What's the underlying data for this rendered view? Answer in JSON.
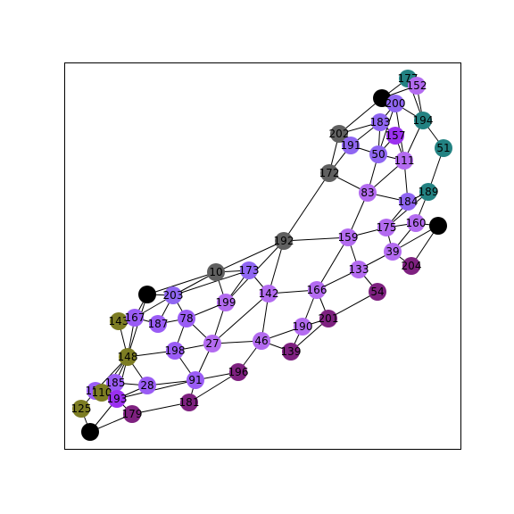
{
  "graph": {
    "colors": {
      "purple_light": "#b36bf0",
      "purple_mid": "#9a5cf5",
      "purple_blue": "#8f66f2",
      "violet": "#9b30f0",
      "magenta_dark": "#7e2180",
      "teal": "#238282",
      "olive": "#7d7d23",
      "gray": "#606060",
      "black": "#000000"
    },
    "nodes": [
      {
        "id": "177",
        "label": "177",
        "color": "teal"
      },
      {
        "id": "152",
        "label": "152",
        "color": "purple_light"
      },
      {
        "id": "b1",
        "label": "",
        "color": "black"
      },
      {
        "id": "200",
        "label": "200",
        "color": "purple_blue"
      },
      {
        "id": "194",
        "label": "194",
        "color": "teal"
      },
      {
        "id": "202",
        "label": "202",
        "color": "gray"
      },
      {
        "id": "183",
        "label": "183",
        "color": "purple_blue"
      },
      {
        "id": "157",
        "label": "157",
        "color": "violet"
      },
      {
        "id": "191",
        "label": "191",
        "color": "purple_blue"
      },
      {
        "id": "50",
        "label": "50",
        "color": "purple_blue"
      },
      {
        "id": "111",
        "label": "111",
        "color": "purple_light"
      },
      {
        "id": "51",
        "label": "51",
        "color": "teal"
      },
      {
        "id": "172",
        "label": "172",
        "color": "gray"
      },
      {
        "id": "83",
        "label": "83",
        "color": "purple_light"
      },
      {
        "id": "189",
        "label": "189",
        "color": "teal"
      },
      {
        "id": "184",
        "label": "184",
        "color": "purple_blue"
      },
      {
        "id": "160",
        "label": "160",
        "color": "purple_light"
      },
      {
        "id": "b2",
        "label": "",
        "color": "black"
      },
      {
        "id": "175",
        "label": "175",
        "color": "purple_light"
      },
      {
        "id": "159",
        "label": "159",
        "color": "purple_light"
      },
      {
        "id": "192",
        "label": "192",
        "color": "gray"
      },
      {
        "id": "39",
        "label": "39",
        "color": "purple_light"
      },
      {
        "id": "204",
        "label": "204",
        "color": "magenta_dark"
      },
      {
        "id": "133",
        "label": "133",
        "color": "purple_light"
      },
      {
        "id": "54",
        "label": "54",
        "color": "magenta_dark"
      },
      {
        "id": "10",
        "label": "10",
        "color": "gray"
      },
      {
        "id": "173",
        "label": "173",
        "color": "purple_blue"
      },
      {
        "id": "b3",
        "label": "",
        "color": "black"
      },
      {
        "id": "203",
        "label": "203",
        "color": "purple_blue"
      },
      {
        "id": "166",
        "label": "166",
        "color": "purple_light"
      },
      {
        "id": "142",
        "label": "142",
        "color": "purple_light"
      },
      {
        "id": "199",
        "label": "199",
        "color": "purple_light"
      },
      {
        "id": "201",
        "label": "201",
        "color": "magenta_dark"
      },
      {
        "id": "190",
        "label": "190",
        "color": "purple_light"
      },
      {
        "id": "143",
        "label": "143",
        "color": "olive"
      },
      {
        "id": "167",
        "label": "167",
        "color": "purple_mid"
      },
      {
        "id": "187",
        "label": "187",
        "color": "purple_mid"
      },
      {
        "id": "78",
        "label": "78",
        "color": "purple_mid"
      },
      {
        "id": "27",
        "label": "27",
        "color": "purple_light"
      },
      {
        "id": "46",
        "label": "46",
        "color": "purple_light"
      },
      {
        "id": "139",
        "label": "139",
        "color": "magenta_dark"
      },
      {
        "id": "198",
        "label": "198",
        "color": "purple_mid"
      },
      {
        "id": "148",
        "label": "148",
        "color": "olive"
      },
      {
        "id": "196",
        "label": "196",
        "color": "magenta_dark"
      },
      {
        "id": "91",
        "label": "91",
        "color": "purple_mid"
      },
      {
        "id": "28",
        "label": "28",
        "color": "purple_mid"
      },
      {
        "id": "185",
        "label": "185",
        "color": "purple_mid"
      },
      {
        "id": "155",
        "label": "155",
        "color": "purple_mid"
      },
      {
        "id": "110",
        "label": "110",
        "color": "olive"
      },
      {
        "id": "193",
        "label": "193",
        "color": "violet"
      },
      {
        "id": "181",
        "label": "181",
        "color": "magenta_dark"
      },
      {
        "id": "125",
        "label": "125",
        "color": "olive"
      },
      {
        "id": "179",
        "label": "179",
        "color": "magenta_dark"
      },
      {
        "id": "b4",
        "label": "",
        "color": "black"
      }
    ],
    "edges": [
      [
        "177",
        "152"
      ],
      [
        "177",
        "b1"
      ],
      [
        "177",
        "194"
      ],
      [
        "152",
        "b1"
      ],
      [
        "152",
        "194"
      ],
      [
        "b1",
        "200"
      ],
      [
        "b1",
        "202"
      ],
      [
        "200",
        "183"
      ],
      [
        "200",
        "194"
      ],
      [
        "200",
        "111"
      ],
      [
        "200",
        "50"
      ],
      [
        "194",
        "51"
      ],
      [
        "194",
        "111"
      ],
      [
        "202",
        "172"
      ],
      [
        "202",
        "191"
      ],
      [
        "202",
        "183"
      ],
      [
        "183",
        "191"
      ],
      [
        "183",
        "157"
      ],
      [
        "183",
        "50"
      ],
      [
        "157",
        "50"
      ],
      [
        "157",
        "111"
      ],
      [
        "191",
        "50"
      ],
      [
        "191",
        "172"
      ],
      [
        "50",
        "111"
      ],
      [
        "50",
        "83"
      ],
      [
        "111",
        "83"
      ],
      [
        "111",
        "184"
      ],
      [
        "51",
        "189"
      ],
      [
        "172",
        "83"
      ],
      [
        "172",
        "192"
      ],
      [
        "83",
        "184"
      ],
      [
        "83",
        "159"
      ],
      [
        "189",
        "184"
      ],
      [
        "189",
        "160"
      ],
      [
        "189",
        "175"
      ],
      [
        "184",
        "175"
      ],
      [
        "160",
        "b2"
      ],
      [
        "160",
        "39"
      ],
      [
        "160",
        "175"
      ],
      [
        "b2",
        "204"
      ],
      [
        "b2",
        "39"
      ],
      [
        "175",
        "159"
      ],
      [
        "175",
        "39"
      ],
      [
        "192",
        "159"
      ],
      [
        "192",
        "10"
      ],
      [
        "192",
        "142"
      ],
      [
        "192",
        "199"
      ],
      [
        "159",
        "133"
      ],
      [
        "159",
        "166"
      ],
      [
        "39",
        "133"
      ],
      [
        "39",
        "204"
      ],
      [
        "133",
        "54"
      ],
      [
        "133",
        "166"
      ],
      [
        "54",
        "201"
      ],
      [
        "10",
        "173"
      ],
      [
        "10",
        "199"
      ],
      [
        "10",
        "b3"
      ],
      [
        "10",
        "203"
      ],
      [
        "173",
        "199"
      ],
      [
        "173",
        "142"
      ],
      [
        "173",
        "203"
      ],
      [
        "b3",
        "203"
      ],
      [
        "b3",
        "167"
      ],
      [
        "b3",
        "148"
      ],
      [
        "203",
        "187"
      ],
      [
        "203",
        "78"
      ],
      [
        "203",
        "167"
      ],
      [
        "166",
        "142"
      ],
      [
        "166",
        "190"
      ],
      [
        "166",
        "201"
      ],
      [
        "142",
        "27"
      ],
      [
        "142",
        "46"
      ],
      [
        "199",
        "78"
      ],
      [
        "199",
        "27"
      ],
      [
        "201",
        "190"
      ],
      [
        "201",
        "139"
      ],
      [
        "190",
        "46"
      ],
      [
        "190",
        "139"
      ],
      [
        "143",
        "167"
      ],
      [
        "143",
        "148"
      ],
      [
        "167",
        "187"
      ],
      [
        "167",
        "148"
      ],
      [
        "187",
        "78"
      ],
      [
        "78",
        "198"
      ],
      [
        "78",
        "27"
      ],
      [
        "27",
        "198"
      ],
      [
        "27",
        "46"
      ],
      [
        "27",
        "91"
      ],
      [
        "46",
        "139"
      ],
      [
        "46",
        "196"
      ],
      [
        "198",
        "148"
      ],
      [
        "198",
        "91"
      ],
      [
        "148",
        "28"
      ],
      [
        "148",
        "185"
      ],
      [
        "148",
        "155"
      ],
      [
        "148",
        "110"
      ],
      [
        "148",
        "193"
      ],
      [
        "196",
        "91"
      ],
      [
        "196",
        "181"
      ],
      [
        "91",
        "28"
      ],
      [
        "91",
        "181"
      ],
      [
        "91",
        "193"
      ],
      [
        "28",
        "185"
      ],
      [
        "28",
        "193"
      ],
      [
        "185",
        "155"
      ],
      [
        "185",
        "193"
      ],
      [
        "155",
        "110"
      ],
      [
        "155",
        "125"
      ],
      [
        "110",
        "193"
      ],
      [
        "193",
        "179"
      ],
      [
        "193",
        "b4"
      ],
      [
        "181",
        "179"
      ],
      [
        "125",
        "b4"
      ],
      [
        "b4",
        "179"
      ]
    ]
  }
}
